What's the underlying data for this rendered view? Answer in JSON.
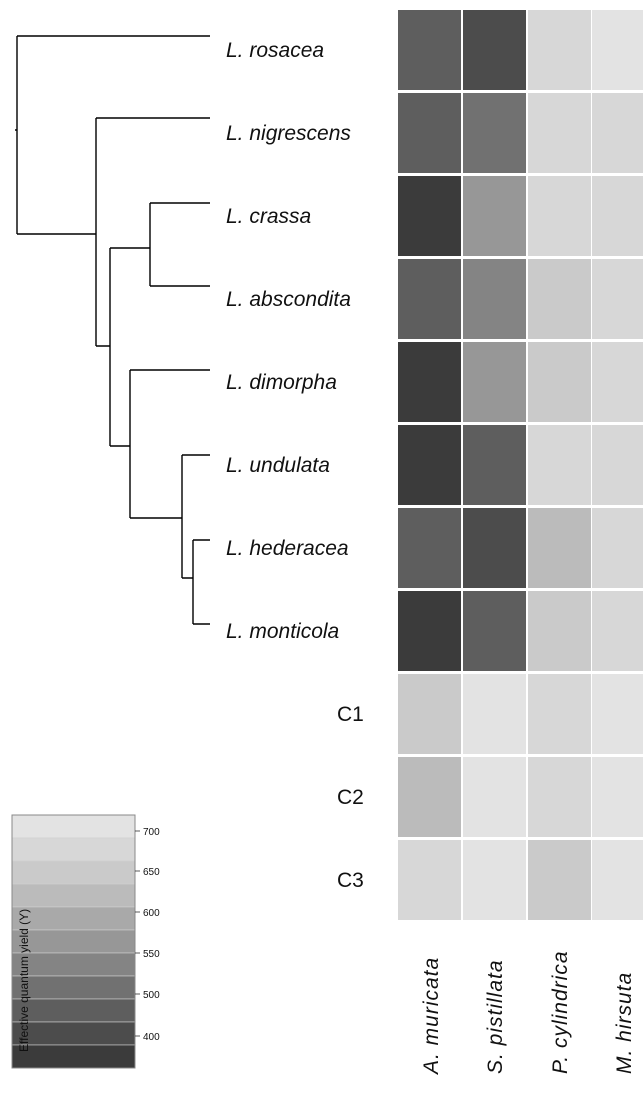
{
  "chart_data": {
    "type": "heatmap",
    "rows": [
      "L. rosacea",
      "L. nigrescens",
      "L. crassa",
      "L. abscondita",
      "L. dimorpha",
      "L. undulata",
      "L. hederacea",
      "L. monticola",
      "C1",
      "C2",
      "C3"
    ],
    "columns": [
      "A. muricata",
      "S. pistillata",
      "P. cylindrica",
      "M. hirsuta"
    ],
    "values": [
      [
        440,
        410,
        680,
        710
      ],
      [
        440,
        470,
        680,
        680
      ],
      [
        380,
        560,
        680,
        680
      ],
      [
        440,
        510,
        650,
        670
      ],
      [
        380,
        560,
        650,
        680
      ],
      [
        380,
        440,
        670,
        680
      ],
      [
        440,
        430,
        620,
        690
      ],
      [
        380,
        440,
        660,
        690
      ],
      [
        660,
        700,
        670,
        700
      ],
      [
        620,
        710,
        680,
        700
      ],
      [
        690,
        710,
        660,
        700
      ]
    ],
    "colorbar": {
      "label": "Effective quantum yield (Y)",
      "ticks": [
        400,
        500,
        550,
        600,
        650,
        700
      ],
      "range": [
        370,
        730
      ],
      "colors": [
        "#3b3b3b",
        "#4c4c4c",
        "#5e5e5e",
        "#717171",
        "#848484",
        "#979797",
        "#a9a9a9",
        "#bbbbbb",
        "#cacaca",
        "#d7d7d7",
        "#e3e3e3"
      ]
    },
    "dendrogram": "((L. rosacea),((L. nigrescens),(((L. crassa, L. abscondita)),((L. dimorpha),((L. undulata),((L. hederacea, L. monticola)))))))",
    "grid": false
  }
}
